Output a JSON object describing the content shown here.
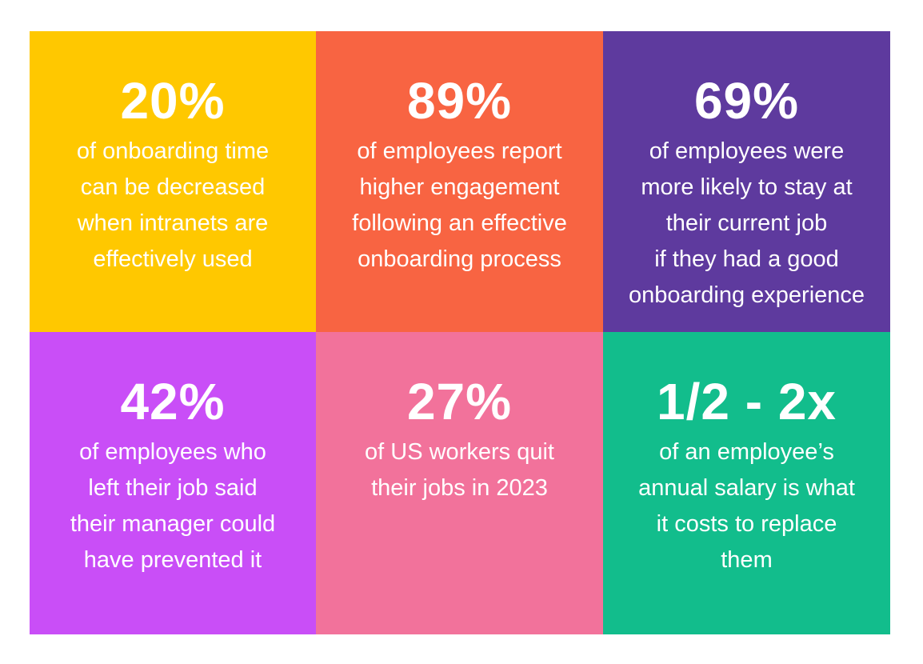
{
  "stats": [
    {
      "value": "20%",
      "text": "of onboarding time\ncan be decreased\nwhen intranets are\neffectively used",
      "color": "#FFC800"
    },
    {
      "value": "89%",
      "text": "of employees report\nhigher engagement\nfollowing an effective\nonboarding process",
      "color": "#F86442"
    },
    {
      "value": "69%",
      "text": "of employees were\nmore likely to stay at\ntheir current job\nif they had a good\nonboarding experience",
      "color": "#5E3A9E"
    },
    {
      "value": "42%",
      "text": "of employees who\nleft their job said\ntheir manager could\nhave prevented it",
      "color": "#C94EF7"
    },
    {
      "value": "27%",
      "text": "of US workers quit\ntheir jobs in 2023",
      "color": "#F2729B"
    },
    {
      "value": "1/2 - 2x",
      "text": "of an employee’s\nannual salary is what\nit costs to replace\nthem",
      "color": "#12BD8C"
    }
  ]
}
